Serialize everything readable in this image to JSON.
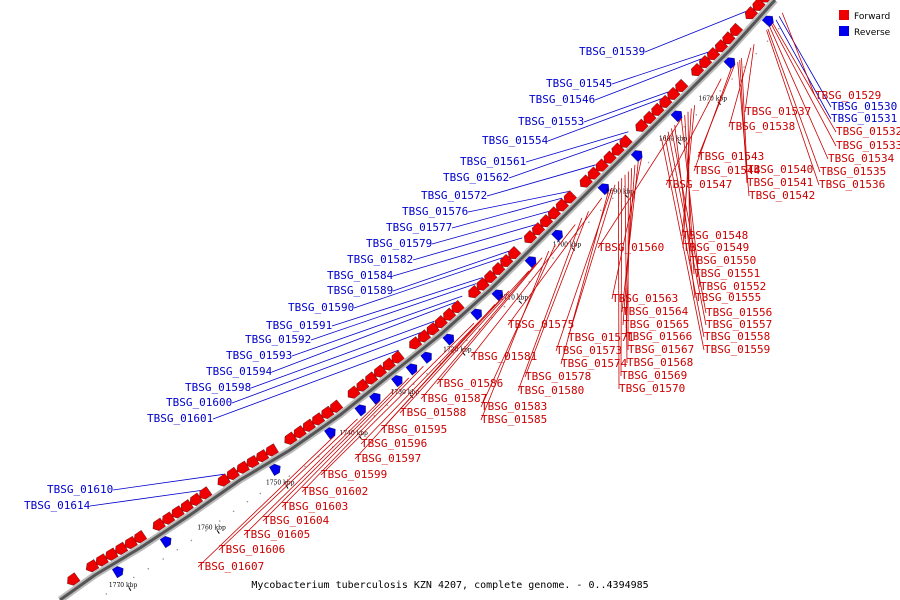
{
  "caption": "Mycobacterium tuberculosis KZN 4207, complete genome. - 0..4394985",
  "legend": [
    {
      "label": "Forward",
      "color": "#ee0000"
    },
    {
      "label": "Reverse",
      "color": "#0000ee"
    }
  ],
  "ticks": [
    "1670 kbp",
    "1680 kbp",
    "1690 kbp",
    "1700 kbp",
    "1710 kbp",
    "1720 kbp",
    "1730 kbp",
    "1740 kbp",
    "1750 kbp",
    "1760 kbp",
    "1770 kbp"
  ],
  "reverse_genes": [
    "TBSG_01539",
    "TBSG_01545",
    "TBSG_01546",
    "TBSG_01553",
    "TBSG_01554",
    "TBSG_01561",
    "TBSG_01562",
    "TBSG_01572",
    "TBSG_01576",
    "TBSG_01577",
    "TBSG_01579",
    "TBSG_01582",
    "TBSG_01584",
    "TBSG_01589",
    "TBSG_01590",
    "TBSG_01591",
    "TBSG_01592",
    "TBSG_01593",
    "TBSG_01594",
    "TBSG_01598",
    "TBSG_01600",
    "TBSG_01601",
    "TBSG_01610",
    "TBSG_01614"
  ],
  "reverse_right_genes": [
    "TBSG_01530",
    "TBSG_01531"
  ],
  "forward_genes": [
    "TBSG_01529",
    "TBSG_01532",
    "TBSG_01533",
    "TBSG_01534",
    "TBSG_01535",
    "TBSG_01536",
    "TBSG_01537",
    "TBSG_01538",
    "TBSG_01540",
    "TBSG_01541",
    "TBSG_01542",
    "TBSG_01543",
    "TBSG_01544",
    "TBSG_01547",
    "TBSG_01548",
    "TBSG_01549",
    "TBSG_01550",
    "TBSG_01551",
    "TBSG_01552",
    "TBSG_01555",
    "TBSG_01556",
    "TBSG_01557",
    "TBSG_01558",
    "TBSG_01559",
    "TBSG_01560",
    "TBSG_01563",
    "TBSG_01564",
    "TBSG_01565",
    "TBSG_01566",
    "TBSG_01567",
    "TBSG_01568",
    "TBSG_01569",
    "TBSG_01570",
    "TBSG_01571",
    "TBSG_01573",
    "TBSG_01574",
    "TBSG_01575",
    "TBSG_01578",
    "TBSG_01580",
    "TBSG_01581",
    "TBSG_01583",
    "TBSG_01585",
    "TBSG_01586",
    "TBSG_01587",
    "TBSG_01588",
    "TBSG_01595",
    "TBSG_01596",
    "TBSG_01597",
    "TBSG_01599",
    "TBSG_01602",
    "TBSG_01603",
    "TBSG_01604",
    "TBSG_01605",
    "TBSG_01606",
    "TBSG_01607"
  ]
}
